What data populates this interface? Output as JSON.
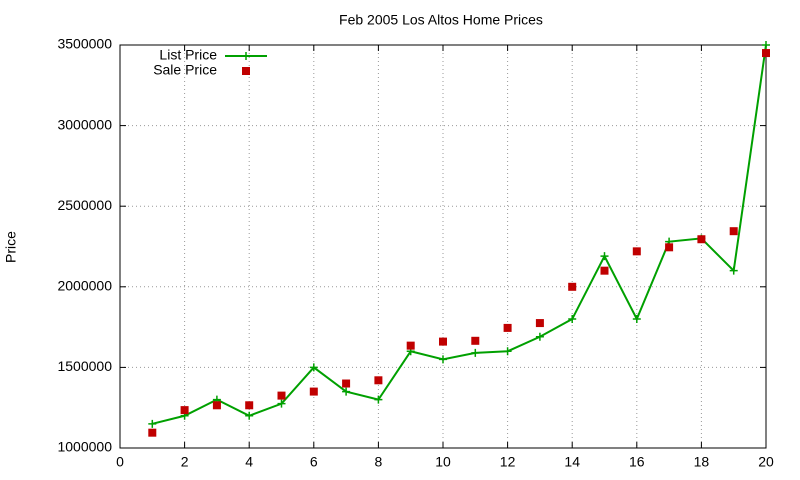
{
  "chart_data": {
    "type": "line",
    "title": "Feb 2005 Los Altos Home Prices",
    "y_label": "Price",
    "x": [
      1,
      2,
      3,
      4,
      5,
      6,
      7,
      8,
      9,
      10,
      11,
      12,
      13,
      14,
      15,
      16,
      17,
      18,
      19,
      20
    ],
    "series": [
      {
        "name": "List Price",
        "color": "#00a000",
        "style": "linespoints",
        "values": [
          1150000,
          1200000,
          1300000,
          1200000,
          1275000,
          1500000,
          1350000,
          1300000,
          1600000,
          1550000,
          1590000,
          1600000,
          1690000,
          1800000,
          2190000,
          1800000,
          2280000,
          2300000,
          2100000,
          3500000
        ]
      },
      {
        "name": "Sale Price",
        "color": "#c00000",
        "style": "points",
        "values": [
          1095000,
          1235000,
          1265000,
          1265000,
          1325000,
          1350000,
          1400000,
          1420000,
          1635000,
          1660000,
          1665000,
          1745000,
          1775000,
          2000000,
          2100000,
          2220000,
          2245000,
          2295000,
          2345000,
          3450000
        ]
      }
    ],
    "xlim": [
      0,
      20
    ],
    "xticks": [
      0,
      2,
      4,
      6,
      8,
      10,
      12,
      14,
      16,
      18,
      20
    ],
    "ylim": [
      1000000,
      3500000
    ],
    "yticks": [
      1000000,
      1500000,
      2000000,
      2500000,
      3000000,
      3500000
    ],
    "grid": true,
    "legend": "top-left"
  }
}
